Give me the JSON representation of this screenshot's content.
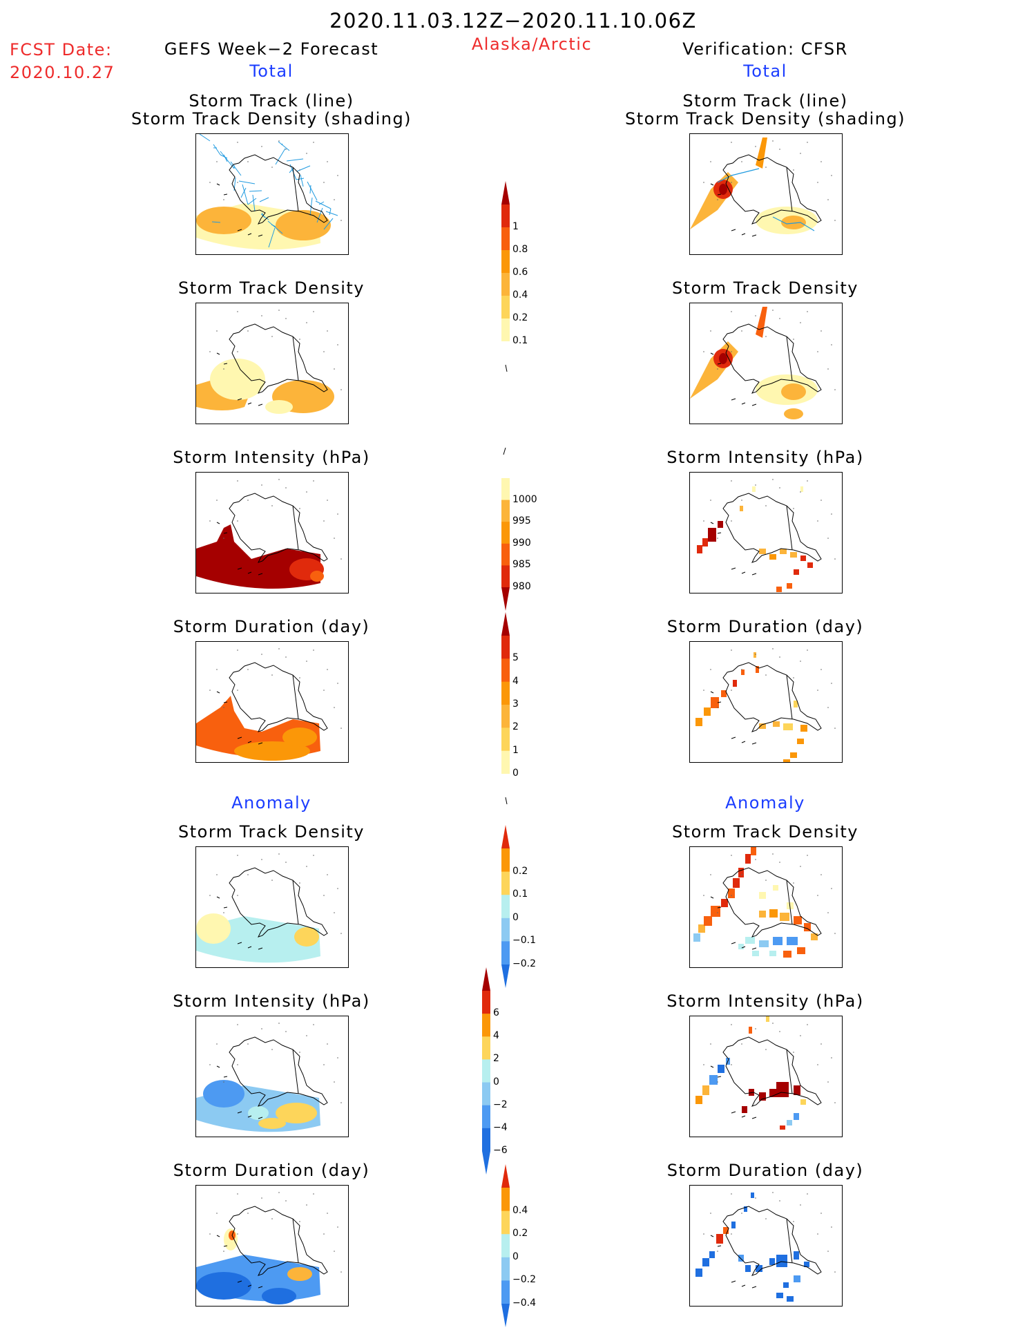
{
  "header": {
    "period": "2020.11.03.12Z−2020.11.10.06Z",
    "region": "Alaska/Arctic",
    "fcst_label": "FCST Date:",
    "fcst_date": "2020.10.27",
    "left_title": "GEFS Week−2 Forecast",
    "right_title": "Verification: CFSR",
    "total_label": "Total",
    "anomaly_label": "Anomaly"
  },
  "panels": {
    "track_line": "Storm Track (line)",
    "track_shading": "Storm Track Density (shading)",
    "density": "Storm Track Density",
    "intensity": "Storm Intensity (hPa)",
    "duration": "Storm Duration (day)"
  },
  "colorbars": {
    "density_total": [
      "1",
      "0.8",
      "0.6",
      "0.4",
      "0.2",
      "0.1"
    ],
    "intensity_total": [
      "1000",
      "995",
      "990",
      "985",
      "980"
    ],
    "duration_total": [
      "5",
      "4",
      "3",
      "2",
      "1",
      "0"
    ],
    "density_anomaly": [
      "0.2",
      "0.1",
      "0",
      "−0.1",
      "−0.2"
    ],
    "intensity_anomaly": [
      "6",
      "4",
      "2",
      "0",
      "−2",
      "−4",
      "−6"
    ],
    "duration_anomaly": [
      "0.4",
      "0.2",
      "0",
      "−0.2",
      "−0.4"
    ]
  },
  "colors": {
    "warm": [
      "#fff7b0",
      "#fdd55a",
      "#fcb43a",
      "#fb9708",
      "#f8600e",
      "#e02a0c",
      "#a50000"
    ],
    "cool": [
      "#b7efef",
      "#8ccaf2",
      "#4d9af2",
      "#1f6fe0"
    ],
    "track_line": "#1f9ae0"
  }
}
